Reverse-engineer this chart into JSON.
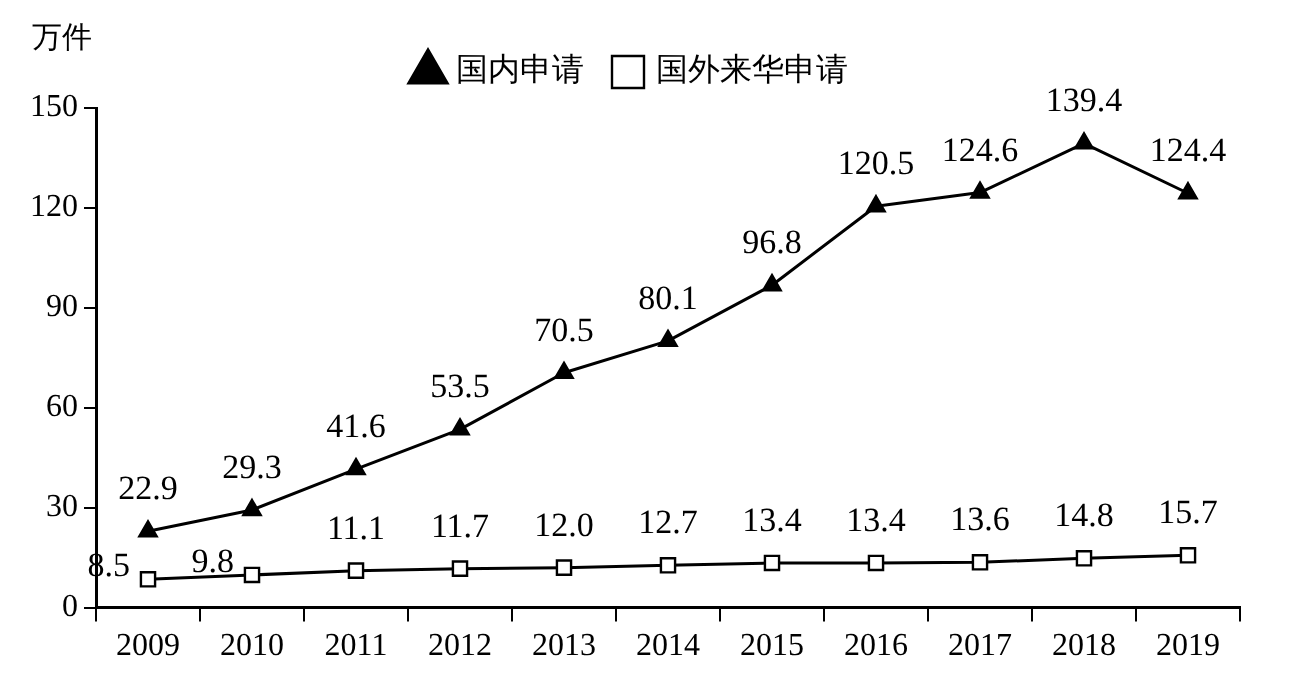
{
  "chart_data": {
    "type": "line",
    "ylabel": "万件",
    "categories": [
      "2009",
      "2010",
      "2011",
      "2012",
      "2013",
      "2014",
      "2015",
      "2016",
      "2017",
      "2018",
      "2019"
    ],
    "series": [
      {
        "name": "国内申请",
        "color": "#000000",
        "marker": "triangle",
        "values": [
          22.9,
          29.3,
          41.6,
          53.5,
          70.5,
          80.1,
          96.8,
          120.5,
          124.6,
          139.4,
          124.4
        ],
        "value_labels": [
          "22.9",
          "29.3",
          "41.6",
          "53.5",
          "70.5",
          "80.1",
          "96.8",
          "120.5",
          "124.6",
          "139.4",
          "124.4"
        ]
      },
      {
        "name": "国外来华申请",
        "color": "#000000",
        "marker": "square",
        "values": [
          8.5,
          9.8,
          11.1,
          11.7,
          12.0,
          12.7,
          13.4,
          13.4,
          13.6,
          14.8,
          15.7
        ],
        "value_labels": [
          "8.5",
          "9.8",
          "11.1",
          "11.7",
          "12.0",
          "12.7",
          "13.4",
          "13.4",
          "13.6",
          "14.8",
          "15.7"
        ]
      }
    ],
    "ylim": [
      0,
      150
    ],
    "yticks": [
      0,
      30,
      60,
      90,
      120,
      150
    ],
    "grid": false,
    "legend": "top",
    "line_style": "solid"
  }
}
